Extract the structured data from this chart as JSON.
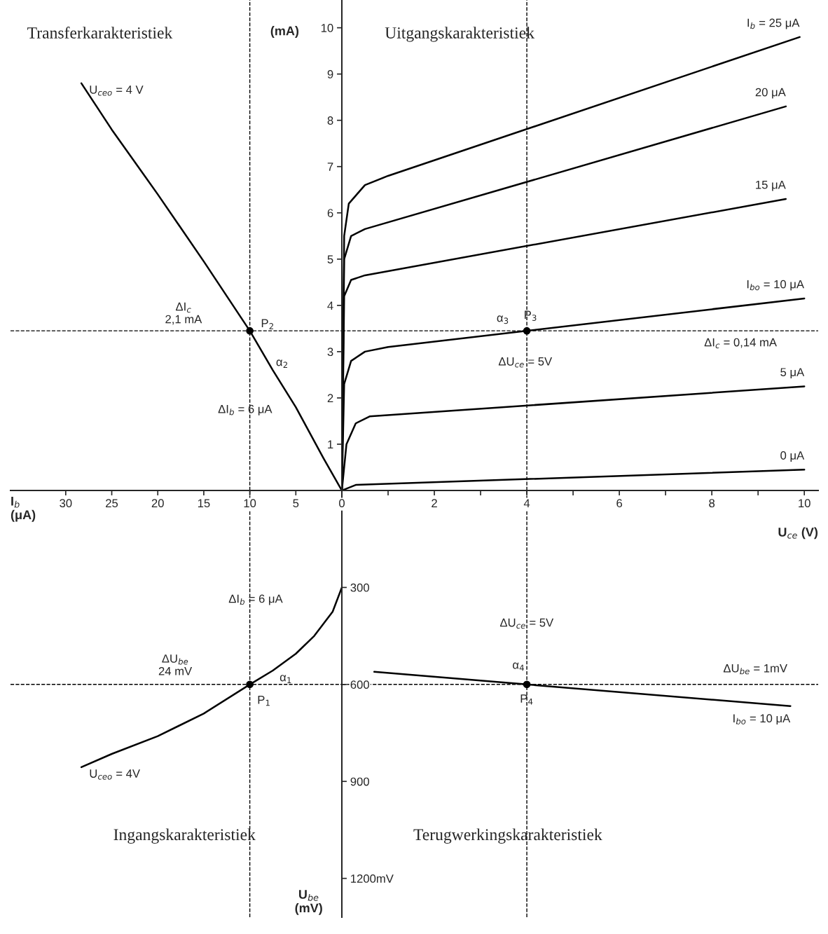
{
  "chart_data": [
    {
      "type": "line",
      "title": "Transferkarakteristiek",
      "xlabel": "I$_{b}$\n(μA)",
      "xlim": [
        36,
        0
      ],
      "xticks": [
        30,
        25,
        20,
        15,
        10,
        5
      ],
      "ylim": [
        0,
        10.6
      ],
      "tick_labels": "x",
      "legend": false,
      "series": [
        {
          "name": "U$_{ceo}$ = 4 V",
          "color": "#000000",
          "x": [
            0,
            2,
            5,
            7.5,
            10,
            15,
            20,
            25,
            28.3
          ],
          "values": [
            0,
            0.7,
            1.8,
            2.6,
            3.45,
            4.95,
            6.4,
            7.8,
            8.8
          ]
        },
        {
          "type": "scatter",
          "marker": "circle",
          "color": "#000000",
          "x": [
            10
          ],
          "values": [
            3.45
          ]
        }
      ],
      "ref_lines": [
        {
          "axis": "x",
          "value": 10,
          "line_style": "dashed",
          "color": "#000000"
        },
        {
          "axis": "y",
          "value": 3.45,
          "line_style": "dashed",
          "color": "#000000"
        }
      ],
      "annotations": [
        "ΔI$_{c}$\n2,1 mA",
        "ΔI$_{b}$ = 6 μA",
        "α$_{2}$",
        "P$_{2}$"
      ]
    },
    {
      "type": "line",
      "title": "Uitgangskarakteristiek",
      "xlabel": "U$_{ce}$ (V)",
      "ylabel": "(mA)",
      "xlim": [
        0,
        10.3
      ],
      "ylim": [
        0,
        10.6
      ],
      "xticks": [
        0,
        {
          "value": 1,
          "label": null
        },
        2,
        {
          "value": 3,
          "label": null
        },
        4,
        {
          "value": 5,
          "label": null
        },
        6,
        {
          "value": 7,
          "label": null
        },
        8,
        {
          "value": 9,
          "label": null
        },
        10
      ],
      "yticks": [
        1,
        2,
        3,
        4,
        5,
        6,
        7,
        8,
        9,
        10
      ],
      "legend": false,
      "series": [
        {
          "name": "I$_{b}$ = 25 μA",
          "color": "#000000",
          "x": [
            0,
            0.05,
            0.15,
            0.5,
            1.0,
            9.9
          ],
          "values": [
            0,
            5.5,
            6.2,
            6.6,
            6.8,
            9.8
          ]
        },
        {
          "name": "20 μA",
          "color": "#000000",
          "x": [
            0,
            0.05,
            0.2,
            0.5,
            9.6
          ],
          "values": [
            0,
            5.0,
            5.5,
            5.65,
            8.3
          ]
        },
        {
          "name": "15 μA",
          "color": "#000000",
          "x": [
            0,
            0.05,
            0.2,
            0.5,
            9.6
          ],
          "values": [
            0,
            4.2,
            4.55,
            4.65,
            6.3
          ]
        },
        {
          "name": "I$_{bo}$ = 10 μA",
          "color": "#000000",
          "x": [
            0,
            0.05,
            0.2,
            0.5,
            1,
            10
          ],
          "values": [
            0,
            2.3,
            2.8,
            3.0,
            3.1,
            4.15
          ]
        },
        {
          "name": "5 μA",
          "color": "#000000",
          "x": [
            0,
            0.1,
            0.3,
            0.6,
            10
          ],
          "values": [
            0,
            1.0,
            1.45,
            1.6,
            2.25
          ]
        },
        {
          "name": "0 μA",
          "color": "#000000",
          "x": [
            0,
            0.3,
            10
          ],
          "values": [
            0,
            0.12,
            0.45
          ]
        },
        {
          "type": "scatter",
          "marker": "circle",
          "color": "#000000",
          "x": [
            4
          ],
          "values": [
            3.45
          ]
        }
      ],
      "ref_lines": [
        {
          "axis": "x",
          "value": 4,
          "line_style": "dashed",
          "color": "#000000"
        },
        {
          "axis": "y",
          "value": 3.45,
          "line_style": "dashed",
          "color": "#000000"
        }
      ],
      "annotations": [
        "α$_{3}$",
        "P$_{3}$",
        "ΔU$_{ce}$ = 5V",
        "ΔI$_{c}$ = 0,14 mA"
      ]
    },
    {
      "type": "line",
      "title": "Ingangskarakteristiek",
      "ylabel": "U$_{be}$\n(mV)",
      "xlim": [
        36,
        0
      ],
      "ylim": [
        1320,
        0
      ],
      "yticks": [
        300,
        600,
        900,
        {
          "value": 1200,
          "label": "1200mV"
        }
      ],
      "tick_labels": "y",
      "legend": false,
      "series": [
        {
          "name": "U$_{ceo}$ = 4V",
          "color": "#000000",
          "x": [
            0,
            1,
            3,
            5,
            7.5,
            10,
            15,
            20,
            25,
            28.3
          ],
          "values": [
            300,
            375,
            450,
            505,
            557,
            600,
            690,
            760,
            815,
            856
          ]
        },
        {
          "type": "scatter",
          "marker": "circle",
          "color": "#000000",
          "x": [
            10
          ],
          "values": [
            600
          ]
        }
      ],
      "ref_lines": [
        {
          "axis": "x",
          "value": 10,
          "line_style": "dashed",
          "color": "#000000"
        },
        {
          "axis": "y",
          "value": 600,
          "line_style": "dashed",
          "color": "#000000"
        }
      ],
      "annotations": [
        "ΔI$_{b}$ = 6 μA",
        "ΔU$_{be}$\n24 mV",
        "α$_{1}$",
        "P$_{1}$"
      ]
    },
    {
      "type": "line",
      "title": "Terugwerkingskarakteristiek",
      "xlim": [
        0,
        10.3
      ],
      "ylim": [
        1320,
        0
      ],
      "tick_labels": false,
      "legend": false,
      "series": [
        {
          "name": "I$_{bo}$ = 10 μA",
          "color": "#000000",
          "x": [
            0.7,
            4,
            9.7
          ],
          "values": [
            561,
            600,
            667
          ]
        },
        {
          "type": "scatter",
          "marker": "circle",
          "color": "#000000",
          "x": [
            4
          ],
          "values": [
            600
          ]
        }
      ],
      "ref_lines": [
        {
          "axis": "x",
          "value": 4,
          "line_style": "dashed",
          "color": "#000000"
        },
        {
          "axis": "y",
          "value": 600,
          "line_style": "dashed",
          "color": "#000000"
        }
      ],
      "annotations": [
        "ΔU$_{ce}$ = 5V",
        "α$_{4}$",
        "P$_{4}$",
        "ΔU$_{be}$ = 1mV"
      ]
    }
  ]
}
